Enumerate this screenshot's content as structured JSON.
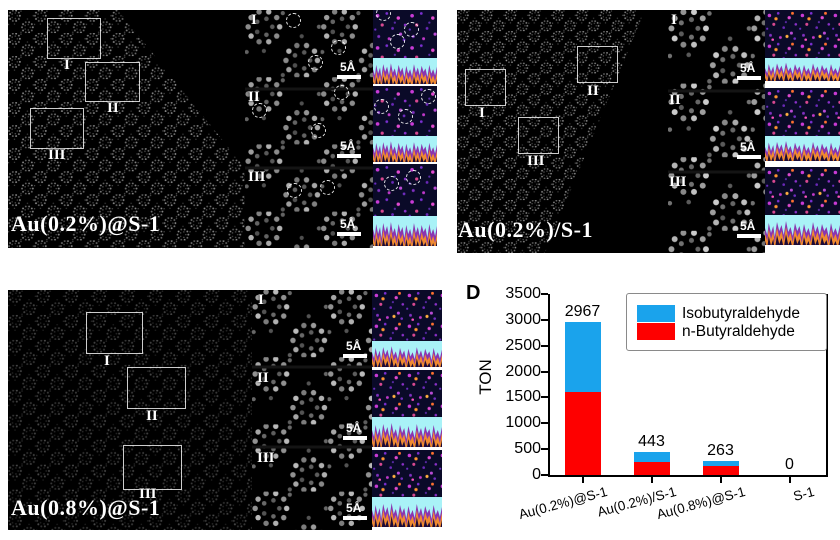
{
  "panels": [
    {
      "label": "Au(0.2%)@S-1",
      "regions": [
        "I",
        "II",
        "III"
      ],
      "scalebar": "5Å"
    },
    {
      "label": "Au(0.2%)/S-1",
      "regions": [
        "I",
        "II",
        "III"
      ],
      "scalebar": "5Å"
    },
    {
      "label": "Au(0.8%)@S-1",
      "regions": [
        "I",
        "II",
        "III"
      ],
      "scalebar": "5Å"
    }
  ],
  "chart_data": {
    "type": "bar",
    "stacked": true,
    "panel_label": "D",
    "title": "",
    "xlabel": "",
    "ylabel": "TON",
    "categories": [
      "Au(0.2%)@S-1",
      "Au(0.2%)/S-1",
      "Au(0.8%)@S-1",
      "S-1"
    ],
    "series": [
      {
        "name": "Isobutyraldehyde",
        "color": "#1aa3ec",
        "values": [
          1367,
          193,
          88,
          0
        ]
      },
      {
        "name": "n-Butyraldehyde",
        "color": "#fe0000",
        "values": [
          1600,
          250,
          175,
          0
        ]
      }
    ],
    "totals": [
      2967,
      443,
      263,
      0
    ],
    "ylim": [
      0,
      3500
    ],
    "yticks": [
      0,
      500,
      1000,
      1500,
      2000,
      2500,
      3000,
      3500
    ],
    "legend_position": "top-right",
    "grid": false
  }
}
